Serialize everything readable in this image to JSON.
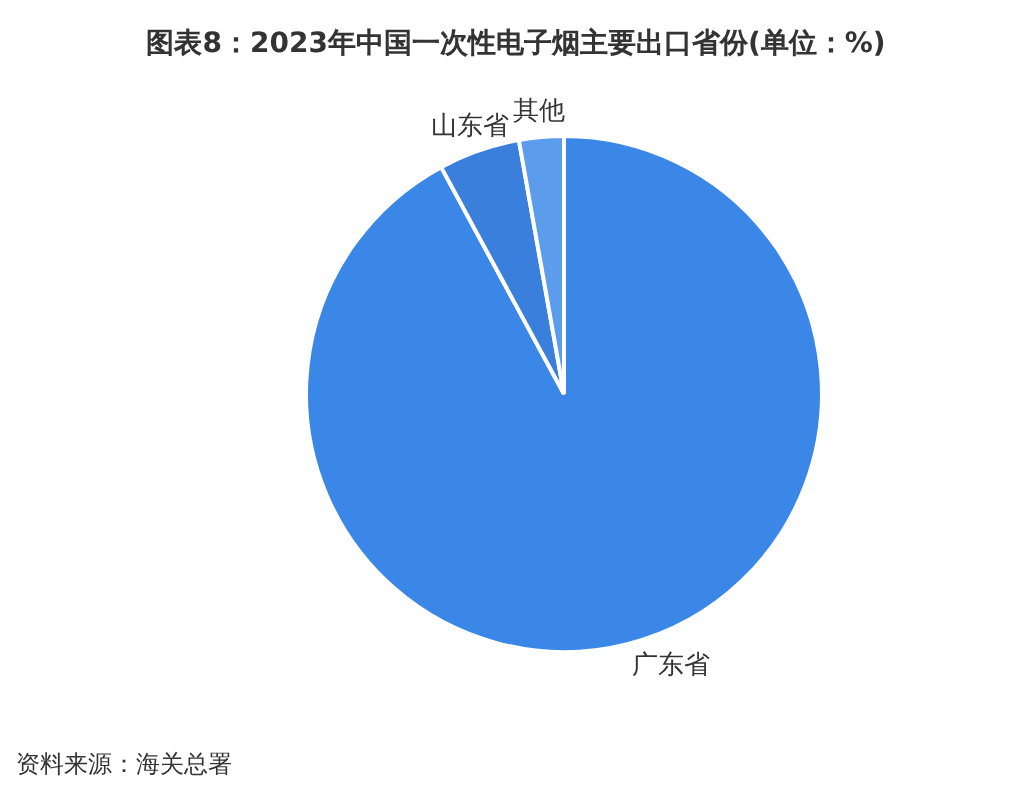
{
  "chart_data": {
    "type": "pie",
    "title": "图表8：2023年中国一次性电子烟主要出口省份(单位：%)",
    "categories": [
      "广东省",
      "山东省",
      "其他"
    ],
    "values": [
      92.1,
      5.1,
      2.8
    ],
    "colors": [
      "#3b87e8",
      "#3a7fdb",
      "#5b9cec"
    ],
    "annotations": [
      "资料来源：海关总署"
    ]
  }
}
